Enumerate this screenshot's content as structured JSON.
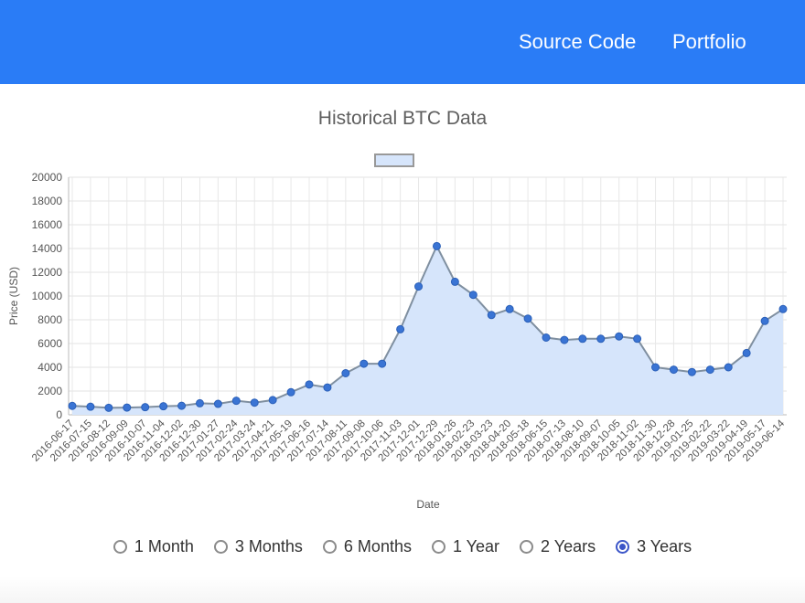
{
  "nav": {
    "source_code": "Source Code",
    "portfolio": "Portfolio"
  },
  "colors": {
    "header": "#2a7cf6",
    "line": "#7f8fa0",
    "point": "#3a74d4",
    "fill": "#d6e5fb",
    "radio_selected": "#3b55c8"
  },
  "chart_data": {
    "type": "area",
    "title": "Historical BTC Data",
    "xlabel": "Date",
    "ylabel": "Price (USD)",
    "ylim": [
      0,
      20000
    ],
    "yticks": [
      0,
      2000,
      4000,
      6000,
      8000,
      10000,
      12000,
      14000,
      16000,
      18000,
      20000
    ],
    "grid": true,
    "legend": "top-center",
    "series": [
      {
        "name": "",
        "x": [
          "2016-06-17",
          "2016-07-15",
          "2016-08-12",
          "2016-09-09",
          "2016-10-07",
          "2016-11-04",
          "2016-12-02",
          "2016-12-30",
          "2017-01-27",
          "2017-02-24",
          "2017-03-24",
          "2017-04-21",
          "2017-05-19",
          "2017-06-16",
          "2017-07-14",
          "2017-08-11",
          "2017-09-08",
          "2017-10-06",
          "2017-11-03",
          "2017-12-01",
          "2017-12-29",
          "2018-01-26",
          "2018-02-23",
          "2018-03-23",
          "2018-04-20",
          "2018-05-18",
          "2018-06-15",
          "2018-07-13",
          "2018-08-10",
          "2018-09-07",
          "2018-10-05",
          "2018-11-02",
          "2018-11-30",
          "2018-12-28",
          "2019-01-25",
          "2019-02-22",
          "2019-03-22",
          "2019-04-19",
          "2019-05-17",
          "2019-06-14"
        ],
        "values": [
          750,
          680,
          590,
          610,
          640,
          720,
          760,
          970,
          920,
          1180,
          1020,
          1240,
          1900,
          2550,
          2300,
          3500,
          4300,
          4300,
          7200,
          10800,
          14200,
          11200,
          10100,
          8400,
          8900,
          8100,
          6500,
          6300,
          6400,
          6400,
          6600,
          6400,
          4000,
          3800,
          3600,
          3800,
          4000,
          5200,
          7900,
          8900
        ]
      }
    ]
  },
  "ranges": {
    "options": [
      "1 Month",
      "3 Months",
      "6 Months",
      "1 Year",
      "2 Years",
      "3 Years"
    ],
    "selected": "3 Years"
  }
}
